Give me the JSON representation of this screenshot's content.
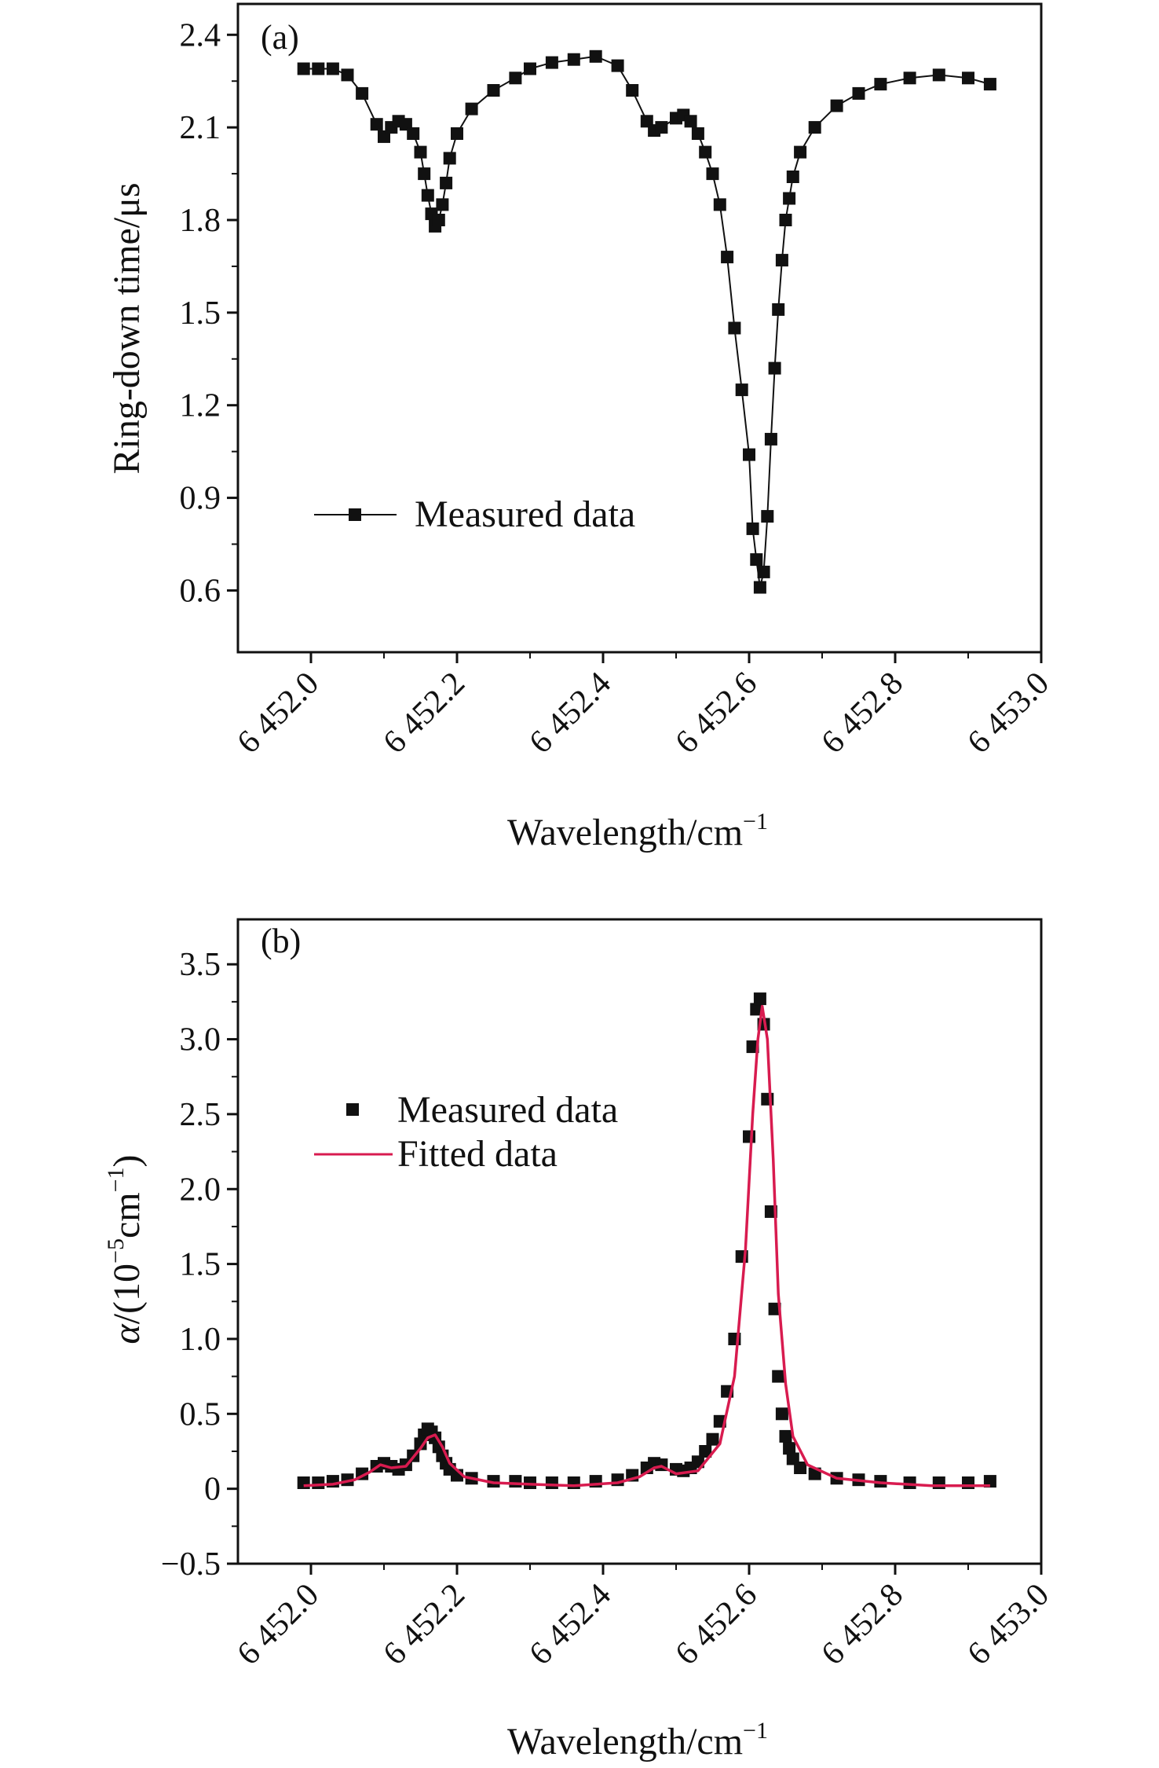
{
  "chart_data": [
    {
      "panel_label": "(a)",
      "type": "line",
      "xlabel": "Wavelength/cm",
      "xlabel_sup": "−1",
      "ylabel": "Ring-down time/μs",
      "xlim": [
        6451.9,
        6453.0
      ],
      "ylim": [
        0.4,
        2.5
      ],
      "xticks": [
        6452.0,
        6452.2,
        6452.4,
        6452.6,
        6452.8,
        6453.0
      ],
      "xtick_labels": [
        "6 452.0",
        "6 452.2",
        "6 452.4",
        "6 452.6",
        "6 452.8",
        "6 453.0"
      ],
      "yticks": [
        0.6,
        0.9,
        1.2,
        1.5,
        1.8,
        2.1,
        2.4
      ],
      "ytick_labels": [
        "0.6",
        "0.9",
        "1.2",
        "1.5",
        "1.8",
        "2.1",
        "2.4"
      ],
      "legend": {
        "placement": "middle-left",
        "entries": [
          "Measured data"
        ]
      },
      "series": [
        {
          "name": "Measured data",
          "marker": "square",
          "line": true,
          "color": "#111111",
          "x": [
            6451.99,
            6452.01,
            6452.03,
            6452.05,
            6452.07,
            6452.09,
            6452.1,
            6452.11,
            6452.12,
            6452.13,
            6452.14,
            6452.15,
            6452.155,
            6452.16,
            6452.165,
            6452.17,
            6452.175,
            6452.18,
            6452.185,
            6452.19,
            6452.2,
            6452.22,
            6452.25,
            6452.28,
            6452.3,
            6452.33,
            6452.36,
            6452.39,
            6452.42,
            6452.44,
            6452.46,
            6452.47,
            6452.48,
            6452.5,
            6452.51,
            6452.52,
            6452.53,
            6452.54,
            6452.55,
            6452.56,
            6452.57,
            6452.58,
            6452.59,
            6452.6,
            6452.605,
            6452.61,
            6452.615,
            6452.62,
            6452.625,
            6452.63,
            6452.635,
            6452.64,
            6452.645,
            6452.65,
            6452.655,
            6452.66,
            6452.67,
            6452.69,
            6452.72,
            6452.75,
            6452.78,
            6452.82,
            6452.86,
            6452.9,
            6452.93
          ],
          "y": [
            2.29,
            2.29,
            2.29,
            2.27,
            2.21,
            2.11,
            2.07,
            2.1,
            2.12,
            2.11,
            2.08,
            2.02,
            1.95,
            1.88,
            1.82,
            1.78,
            1.8,
            1.85,
            1.92,
            2.0,
            2.08,
            2.16,
            2.22,
            2.26,
            2.29,
            2.31,
            2.32,
            2.33,
            2.3,
            2.22,
            2.12,
            2.09,
            2.1,
            2.13,
            2.14,
            2.12,
            2.08,
            2.02,
            1.95,
            1.85,
            1.68,
            1.45,
            1.25,
            1.04,
            0.8,
            0.7,
            0.61,
            0.66,
            0.84,
            1.09,
            1.32,
            1.51,
            1.67,
            1.8,
            1.87,
            1.94,
            2.02,
            2.1,
            2.17,
            2.21,
            2.24,
            2.26,
            2.27,
            2.26,
            2.24
          ]
        }
      ]
    },
    {
      "panel_label": "(b)",
      "type": "line",
      "xlabel": "Wavelength/cm",
      "xlabel_sup": "−1",
      "ylabel_italic": "α",
      "ylabel_part1": "/(10",
      "ylabel_sup1": "−5",
      "ylabel_part2": "cm",
      "ylabel_sup2": "−1",
      "ylabel_part3": ")",
      "xlim": [
        6451.9,
        6453.0
      ],
      "ylim": [
        -0.5,
        3.8
      ],
      "xticks": [
        6452.0,
        6452.2,
        6452.4,
        6452.6,
        6452.8,
        6453.0
      ],
      "xtick_labels": [
        "6 452.0",
        "6 452.2",
        "6 452.4",
        "6 452.6",
        "6 452.8",
        "6 453.0"
      ],
      "yticks": [
        -0.5,
        0,
        0.5,
        1.0,
        1.5,
        2.0,
        2.5,
        3.0,
        3.5
      ],
      "ytick_labels": [
        "−0.5",
        "0",
        "0.5",
        "1.0",
        "1.5",
        "2.0",
        "2.5",
        "3.0",
        "3.5"
      ],
      "legend": {
        "placement": "upper-left",
        "entries": [
          "Measured data",
          "Fitted data"
        ]
      },
      "series": [
        {
          "name": "Measured data",
          "marker": "square",
          "line": false,
          "color": "#111111",
          "x": [
            6451.99,
            6452.01,
            6452.03,
            6452.05,
            6452.07,
            6452.09,
            6452.1,
            6452.11,
            6452.12,
            6452.13,
            6452.14,
            6452.15,
            6452.155,
            6452.16,
            6452.165,
            6452.17,
            6452.175,
            6452.18,
            6452.185,
            6452.19,
            6452.2,
            6452.22,
            6452.25,
            6452.28,
            6452.3,
            6452.33,
            6452.36,
            6452.39,
            6452.42,
            6452.44,
            6452.46,
            6452.47,
            6452.48,
            6452.5,
            6452.51,
            6452.52,
            6452.53,
            6452.54,
            6452.55,
            6452.56,
            6452.57,
            6452.58,
            6452.59,
            6452.6,
            6452.605,
            6452.61,
            6452.615,
            6452.62,
            6452.625,
            6452.63,
            6452.635,
            6452.64,
            6452.645,
            6452.65,
            6452.655,
            6452.66,
            6452.67,
            6452.69,
            6452.72,
            6452.75,
            6452.78,
            6452.82,
            6452.86,
            6452.9,
            6452.93
          ],
          "y": [
            0.04,
            0.04,
            0.05,
            0.06,
            0.1,
            0.15,
            0.17,
            0.15,
            0.13,
            0.16,
            0.22,
            0.3,
            0.36,
            0.4,
            0.38,
            0.34,
            0.28,
            0.22,
            0.17,
            0.13,
            0.09,
            0.07,
            0.05,
            0.05,
            0.04,
            0.04,
            0.04,
            0.05,
            0.06,
            0.09,
            0.14,
            0.17,
            0.16,
            0.13,
            0.12,
            0.14,
            0.18,
            0.25,
            0.33,
            0.45,
            0.65,
            1.0,
            1.55,
            2.35,
            2.95,
            3.2,
            3.27,
            3.1,
            2.6,
            1.85,
            1.2,
            0.75,
            0.5,
            0.35,
            0.27,
            0.2,
            0.14,
            0.1,
            0.07,
            0.06,
            0.05,
            0.04,
            0.04,
            0.04,
            0.05
          ]
        },
        {
          "name": "Fitted data",
          "marker": "none",
          "line": true,
          "color": "#d81b4f",
          "x": [
            6451.99,
            6452.03,
            6452.06,
            6452.08,
            6452.095,
            6452.11,
            6452.13,
            6452.15,
            6452.16,
            6452.17,
            6452.18,
            6452.19,
            6452.21,
            6452.25,
            6452.3,
            6452.36,
            6452.42,
            6452.45,
            6452.47,
            6452.48,
            6452.5,
            6452.53,
            6452.56,
            6452.58,
            6452.595,
            6452.605,
            6452.612,
            6452.618,
            6452.625,
            6452.633,
            6452.64,
            6452.65,
            6452.66,
            6452.68,
            6452.72,
            6452.78,
            6452.85,
            6452.93
          ],
          "y": [
            0.02,
            0.03,
            0.06,
            0.11,
            0.16,
            0.14,
            0.15,
            0.27,
            0.34,
            0.36,
            0.28,
            0.17,
            0.08,
            0.04,
            0.03,
            0.02,
            0.04,
            0.08,
            0.14,
            0.15,
            0.1,
            0.12,
            0.3,
            0.75,
            1.6,
            2.5,
            3.0,
            3.22,
            3.0,
            2.2,
            1.3,
            0.7,
            0.35,
            0.16,
            0.07,
            0.04,
            0.02,
            0.02
          ]
        }
      ]
    }
  ]
}
